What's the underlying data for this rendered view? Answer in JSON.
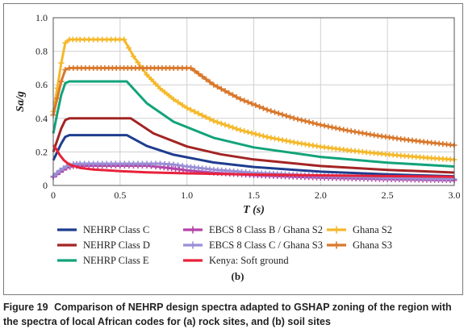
{
  "chart_data": {
    "type": "line",
    "panel_label": "(b)",
    "xlabel": "T (s)",
    "ylabel": "Sa/g",
    "xlim": [
      0,
      3.0
    ],
    "ylim": [
      0,
      1.0
    ],
    "xticks": [
      "0",
      "0.5",
      "1.0",
      "1.5",
      "2.0",
      "2.5",
      "3.0"
    ],
    "yticks": [
      "0",
      "0.2",
      "0.4",
      "0.6",
      "0.8",
      "1.0"
    ],
    "grid": true,
    "legend_placement": "bottom",
    "series": [
      {
        "name": "NEHRP Class C",
        "color": "#1f3d8f",
        "marker": "none",
        "x": [
          0,
          0.03,
          0.06,
          0.09,
          0.12,
          0.55,
          0.7,
          0.9,
          1.2,
          1.5,
          2.0,
          2.5,
          3.0
        ],
        "y": [
          0.15,
          0.2,
          0.25,
          0.29,
          0.3,
          0.3,
          0.235,
          0.183,
          0.137,
          0.11,
          0.082,
          0.066,
          0.055
        ]
      },
      {
        "name": "NEHRP Class D",
        "color": "#a32424",
        "marker": "none",
        "x": [
          0,
          0.03,
          0.06,
          0.09,
          0.12,
          0.58,
          0.75,
          1.0,
          1.25,
          1.5,
          2.0,
          2.5,
          3.0
        ],
        "y": [
          0.2,
          0.27,
          0.34,
          0.39,
          0.4,
          0.4,
          0.31,
          0.232,
          0.186,
          0.155,
          0.116,
          0.093,
          0.077
        ]
      },
      {
        "name": "NEHRP Class E",
        "color": "#12a37a",
        "marker": "none",
        "x": [
          0,
          0.03,
          0.06,
          0.09,
          0.12,
          0.55,
          0.7,
          0.9,
          1.2,
          1.5,
          2.0,
          2.5,
          3.0
        ],
        "y": [
          0.31,
          0.43,
          0.54,
          0.61,
          0.62,
          0.62,
          0.49,
          0.38,
          0.284,
          0.227,
          0.17,
          0.136,
          0.113
        ]
      },
      {
        "name": "EBCS 8 Class B / Ghana S2",
        "color": "#b544a6",
        "marker": "plus",
        "x": [
          0,
          0.05,
          0.1,
          0.15,
          0.2,
          0.3,
          0.4,
          0.5,
          0.6,
          0.7,
          0.8,
          1.0,
          1.2,
          1.5,
          2.0,
          2.5,
          3.0
        ],
        "y": [
          0.05,
          0.08,
          0.105,
          0.115,
          0.118,
          0.118,
          0.118,
          0.118,
          0.118,
          0.118,
          0.11,
          0.09,
          0.076,
          0.061,
          0.046,
          0.037,
          0.031
        ]
      },
      {
        "name": "EBCS 8 Class C / Ghana S3",
        "color": "#9a8fd6",
        "marker": "plus",
        "x": [
          0,
          0.05,
          0.1,
          0.15,
          0.2,
          0.3,
          0.4,
          0.5,
          0.6,
          0.7,
          0.8,
          0.9,
          1.0,
          1.2,
          1.5,
          2.0,
          2.5,
          3.0
        ],
        "y": [
          0.055,
          0.09,
          0.115,
          0.128,
          0.13,
          0.13,
          0.13,
          0.13,
          0.13,
          0.13,
          0.13,
          0.125,
          0.113,
          0.094,
          0.075,
          0.057,
          0.045,
          0.038
        ]
      },
      {
        "name": "Ghana S2",
        "color": "#f5b82a",
        "marker": "plus",
        "x": [
          0,
          0.03,
          0.06,
          0.09,
          0.12,
          0.2,
          0.3,
          0.4,
          0.53,
          0.6,
          0.7,
          0.8,
          0.9,
          1.0,
          1.2,
          1.4,
          1.6,
          1.8,
          2.0,
          2.2,
          2.4,
          2.6,
          2.8,
          3.0
        ],
        "y": [
          0.44,
          0.58,
          0.73,
          0.85,
          0.87,
          0.87,
          0.87,
          0.87,
          0.87,
          0.77,
          0.66,
          0.578,
          0.514,
          0.462,
          0.385,
          0.33,
          0.289,
          0.257,
          0.231,
          0.21,
          0.193,
          0.178,
          0.165,
          0.154
        ]
      },
      {
        "name": "Ghana S3",
        "color": "#d9782c",
        "marker": "plus",
        "x": [
          0,
          0.03,
          0.06,
          0.09,
          0.12,
          0.3,
          0.5,
          0.7,
          0.9,
          1.03,
          1.2,
          1.4,
          1.6,
          1.8,
          2.0,
          2.2,
          2.4,
          2.6,
          2.8,
          3.0
        ],
        "y": [
          0.42,
          0.52,
          0.62,
          0.69,
          0.7,
          0.7,
          0.7,
          0.7,
          0.7,
          0.7,
          0.6,
          0.515,
          0.451,
          0.401,
          0.361,
          0.328,
          0.3,
          0.277,
          0.257,
          0.24
        ]
      },
      {
        "name": "Kenya: Soft ground",
        "color": "#e8223a",
        "marker": "none",
        "x": [
          0,
          0.02,
          0.05,
          0.08,
          0.12,
          0.2,
          0.3,
          0.5,
          0.7,
          1.0,
          1.5,
          2.0,
          2.5,
          3.0
        ],
        "y": [
          0.24,
          0.22,
          0.18,
          0.15,
          0.125,
          0.105,
          0.095,
          0.085,
          0.078,
          0.072,
          0.065,
          0.06,
          0.056,
          0.052
        ]
      }
    ]
  },
  "caption": {
    "figure_label": "Figure 19",
    "text": "Comparison of NEHRP design spectra adapted to GSHAP zoning of the region with the spectra of local African codes for (a) rock sites, and (b) soil sites"
  }
}
